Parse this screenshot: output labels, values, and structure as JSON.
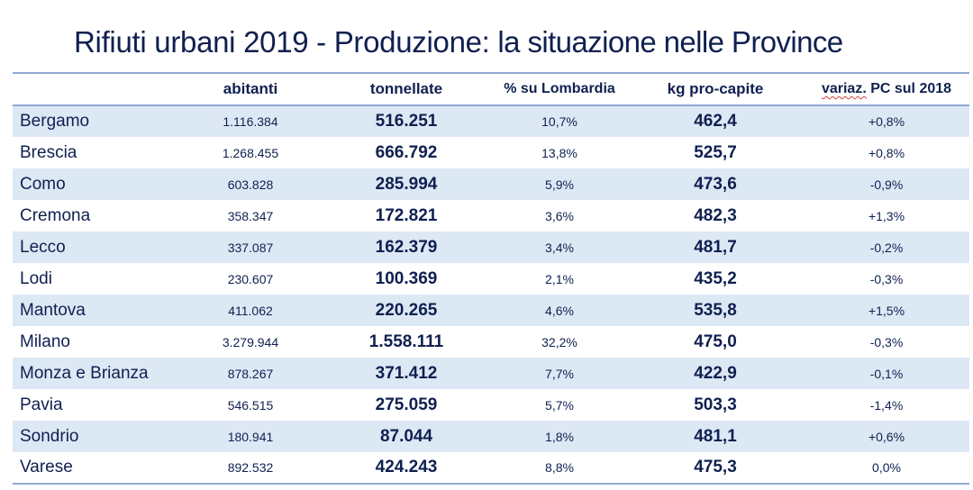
{
  "title": {
    "part1": "Rifiuti urbani 2019 - Produzione: ",
    "part2": "la situazione nelle Province"
  },
  "table": {
    "headers": [
      "",
      "abitanti",
      "tonnellate",
      "% su Lombardia",
      "kg pro-capite",
      "variaz. PC sul 2018"
    ],
    "header_last_underlined": "variaz.",
    "header_last_rest": " PC sul 2018",
    "rows": [
      {
        "provincia": "Bergamo",
        "abitanti": "1.116.384",
        "tonnellate": "516.251",
        "pct_lombardia": "10,7%",
        "kg_pro_capite": "462,4",
        "variaz": "+0,8%"
      },
      {
        "provincia": "Brescia",
        "abitanti": "1.268.455",
        "tonnellate": "666.792",
        "pct_lombardia": "13,8%",
        "kg_pro_capite": "525,7",
        "variaz": "+0,8%"
      },
      {
        "provincia": "Como",
        "abitanti": "603.828",
        "tonnellate": "285.994",
        "pct_lombardia": "5,9%",
        "kg_pro_capite": "473,6",
        "variaz": "-0,9%"
      },
      {
        "provincia": "Cremona",
        "abitanti": "358.347",
        "tonnellate": "172.821",
        "pct_lombardia": "3,6%",
        "kg_pro_capite": "482,3",
        "variaz": "+1,3%"
      },
      {
        "provincia": "Lecco",
        "abitanti": "337.087",
        "tonnellate": "162.379",
        "pct_lombardia": "3,4%",
        "kg_pro_capite": "481,7",
        "variaz": "-0,2%"
      },
      {
        "provincia": "Lodi",
        "abitanti": "230.607",
        "tonnellate": "100.369",
        "pct_lombardia": "2,1%",
        "kg_pro_capite": "435,2",
        "variaz": "-0,3%"
      },
      {
        "provincia": "Mantova",
        "abitanti": "411.062",
        "tonnellate": "220.265",
        "pct_lombardia": "4,6%",
        "kg_pro_capite": "535,8",
        "variaz": "+1,5%"
      },
      {
        "provincia": "Milano",
        "abitanti": "3.279.944",
        "tonnellate": "1.558.111",
        "pct_lombardia": "32,2%",
        "kg_pro_capite": "475,0",
        "variaz": "-0,3%"
      },
      {
        "provincia": "Monza e Brianza",
        "abitanti": "878.267",
        "tonnellate": "371.412",
        "pct_lombardia": "7,7%",
        "kg_pro_capite": "422,9",
        "variaz": "-0,1%"
      },
      {
        "provincia": "Pavia",
        "abitanti": "546.515",
        "tonnellate": "275.059",
        "pct_lombardia": "5,7%",
        "kg_pro_capite": "503,3",
        "variaz": "-1,4%"
      },
      {
        "provincia": "Sondrio",
        "abitanti": "180.941",
        "tonnellate": "87.044",
        "pct_lombardia": "1,8%",
        "kg_pro_capite": "481,1",
        "variaz": "+0,6%"
      },
      {
        "provincia": "Varese",
        "abitanti": "892.532",
        "tonnellate": "424.243",
        "pct_lombardia": "8,8%",
        "kg_pro_capite": "475,3",
        "variaz": "0,0%"
      }
    ]
  },
  "colors": {
    "text": "#0f2050",
    "row_band": "#dde8f5",
    "rule": "#8eaad2"
  }
}
